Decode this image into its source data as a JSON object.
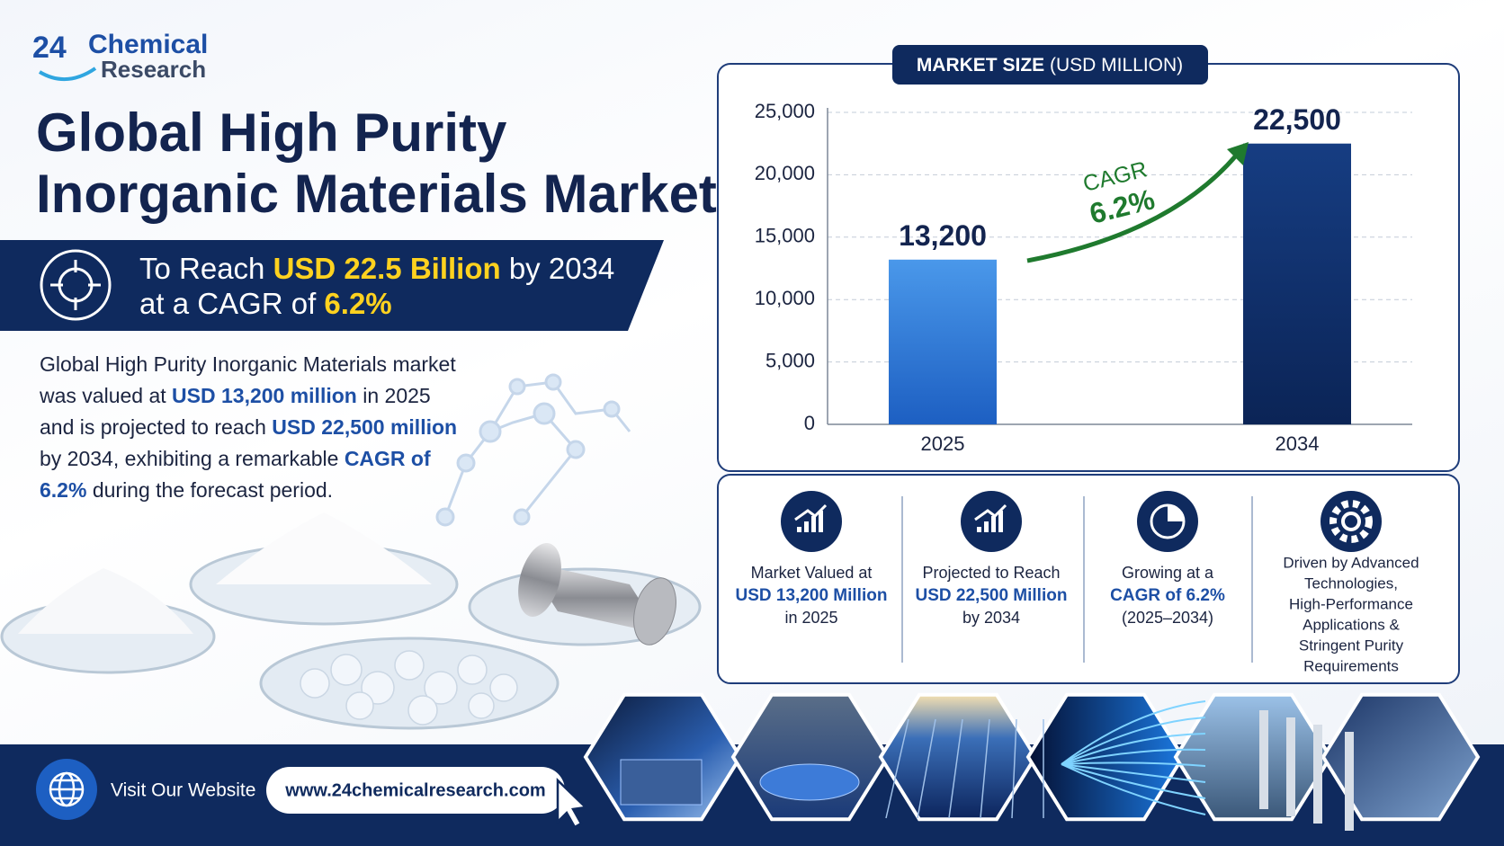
{
  "logo": {
    "number": "24",
    "line1": "Chemical",
    "line2": "Research"
  },
  "title": [
    "Global High Purity",
    "Inorganic Materials Market"
  ],
  "banner": {
    "line1": [
      "To Reach ",
      "USD 22.5 Billion",
      " by 2034"
    ],
    "line2": [
      "at a CAGR of ",
      "6.2%"
    ]
  },
  "description": [
    "Global High Purity Inorganic Materials market was valued at ",
    "USD 13,200 million",
    " in 2025 and is projected to reach ",
    "USD 22,500 million",
    " by 2034, exhibiting a remarkable ",
    "CAGR of 6.2%",
    " during the forecast period."
  ],
  "chart_data": {
    "type": "bar",
    "title": "MARKET SIZE",
    "subtitle": "(USD MILLION)",
    "categories": [
      "2025",
      "2034"
    ],
    "values": [
      13200,
      22500
    ],
    "value_labels": [
      "13,200",
      "22,500"
    ],
    "colors": [
      "#3d8be0",
      "#0f2d68"
    ],
    "ylim": [
      0,
      25000
    ],
    "yticks": [
      0,
      {
        "value": 5000,
        "label": "5,000"
      },
      {
        "value": 10000,
        "label": "10,000"
      },
      {
        "value": 15000,
        "label": "15,000"
      },
      {
        "value": 20000,
        "label": "20,000"
      },
      {
        "value": 25000,
        "label": "25,000"
      }
    ],
    "grid": true,
    "annotations": [
      "CAGR",
      "6.2%"
    ]
  },
  "stats": [
    {
      "top": "Market Valued at",
      "highlight": "USD 13,200 Million",
      "bottom": "in 2025"
    },
    {
      "top": "Projected to Reach",
      "highlight": "USD 22,500 Million",
      "bottom": "by 2034"
    },
    {
      "top": "Growing at a",
      "highlight": "CAGR of 6.2%",
      "bottom": "(2025–2034)"
    },
    {
      "lines": [
        "Driven by Advanced",
        "Technologies,",
        "High-Performance",
        "Applications &",
        "Stringent Purity",
        "Requirements"
      ]
    }
  ],
  "footer": {
    "visit": "Visit Our Website",
    "url": "www.24chemicalresearch.com"
  }
}
